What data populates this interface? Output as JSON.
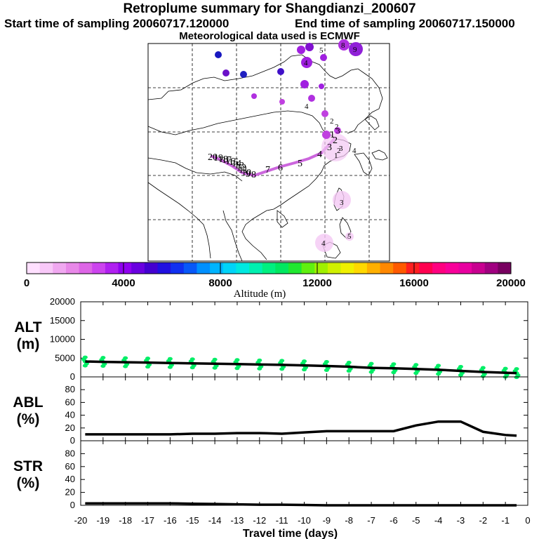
{
  "header": {
    "title": "Retroplume summary for Shangdianzi_200607",
    "start": "Start time of sampling 20060717.120000",
    "end": "End time of sampling 20060717.150000",
    "met": "Meteorological data used is ECMWF"
  },
  "map": {
    "track_labels": [
      "20",
      "19",
      "18",
      "17",
      "16",
      "15",
      "14",
      "13",
      "12",
      "11",
      "10",
      "9",
      "8",
      "7",
      "6",
      "5",
      "4",
      "3",
      "2",
      "1"
    ],
    "cluster_labels": [
      "4",
      "3",
      "2",
      "1",
      "4",
      "3",
      "5",
      "9",
      "8",
      "5",
      "4",
      "2",
      "2",
      "3",
      "4"
    ]
  },
  "colorbar": {
    "ticks": [
      "0",
      "4000",
      "8000",
      "12000",
      "16000",
      "20000"
    ],
    "label": "Altitude (m)",
    "colors": [
      "#ffe0ff",
      "#f8c8f8",
      "#f0a8f0",
      "#e888e8",
      "#dd66e6",
      "#cc44ee",
      "#b020f0",
      "#9000f0",
      "#6a00e0",
      "#4400d0",
      "#2010e0",
      "#1030f0",
      "#0858f8",
      "#0090ff",
      "#00b4ff",
      "#00d4f8",
      "#00e8e0",
      "#00f0b0",
      "#00f080",
      "#00e860",
      "#20e830",
      "#60f010",
      "#a0f000",
      "#d0f000",
      "#f0f000",
      "#ffd800",
      "#ffb000",
      "#ff8800",
      "#ff5a00",
      "#ff2020",
      "#ff0050",
      "#ff0080",
      "#f8009a",
      "#e800a0",
      "#c80090",
      "#a00080",
      "#780060"
    ]
  },
  "chart_data": [
    {
      "type": "line",
      "name": "ALT",
      "ylabel": "ALT\n(m)",
      "ylabel_lines": [
        "ALT",
        "(m)"
      ],
      "ylim": [
        0,
        20000
      ],
      "yticks": [
        "0",
        "5000",
        "10000",
        "15000",
        "20000"
      ],
      "x": [
        -19.8,
        -19,
        -18,
        -17,
        -16,
        -15,
        -14,
        -13,
        -12,
        -11,
        -10,
        -9,
        -8,
        -7,
        -6,
        -5,
        -4,
        -3,
        -2,
        -1,
        -0.5
      ],
      "values": [
        4100,
        4000,
        3900,
        3800,
        3700,
        3600,
        3500,
        3400,
        3300,
        3200,
        3050,
        2900,
        2700,
        2400,
        2300,
        2100,
        1900,
        1600,
        1300,
        1100,
        1000
      ],
      "scatter_color": "#00ee66"
    },
    {
      "type": "line",
      "name": "ABL",
      "ylabel_lines": [
        "ABL",
        "(%)"
      ],
      "ylim": [
        0,
        100
      ],
      "yticks": [
        "0",
        "20",
        "40",
        "60",
        "80"
      ],
      "x": [
        -19.8,
        -19,
        -18,
        -17,
        -16,
        -15,
        -14,
        -13,
        -12,
        -11,
        -10,
        -9,
        -8,
        -7,
        -6,
        -5,
        -4,
        -3,
        -2,
        -1,
        -0.5
      ],
      "values": [
        10,
        10,
        10,
        10,
        10,
        11,
        11,
        12,
        12,
        11,
        13,
        15,
        15,
        15,
        15,
        24,
        30,
        30,
        14,
        9,
        8
      ]
    },
    {
      "type": "line",
      "name": "STR",
      "ylabel_lines": [
        "STR",
        "(%)"
      ],
      "ylim": [
        0,
        100
      ],
      "yticks": [
        "0",
        "20",
        "40",
        "60",
        "80"
      ],
      "x": [
        -19.8,
        -19,
        -18,
        -17,
        -16,
        -15,
        -14,
        -13,
        -12,
        -11,
        -10,
        -9,
        -8,
        -7,
        -6,
        -5,
        -4,
        -3,
        -2,
        -1,
        -0.5
      ],
      "values": [
        3,
        3,
        3,
        3,
        3,
        2.5,
        2,
        1.5,
        1,
        1,
        0.5,
        0,
        0,
        0,
        0,
        0,
        0,
        0,
        0,
        0,
        0
      ]
    }
  ],
  "xaxis": {
    "ticks": [
      "-20",
      "-19",
      "-18",
      "-17",
      "-16",
      "-15",
      "-14",
      "-13",
      "-12",
      "-11",
      "-10",
      "-9",
      "-8",
      "-7",
      "-6",
      "-5",
      "-4",
      "-3",
      "-2",
      "-1",
      "0"
    ],
    "xlim": [
      -20,
      0
    ],
    "label": "Travel time (days)"
  }
}
